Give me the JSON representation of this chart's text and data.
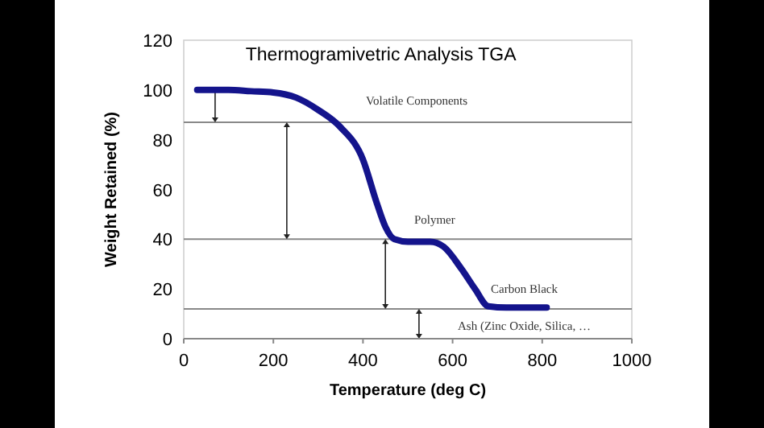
{
  "chart_data": {
    "type": "line",
    "title": "Thermogramivetric Analysis TGA",
    "xlabel": "Temperature (deg C)",
    "ylabel": "Weight Retained (%)",
    "x": [
      30,
      100,
      150,
      200,
      250,
      300,
      350,
      400,
      430,
      450,
      470,
      500,
      550,
      580,
      620,
      650,
      680,
      720,
      810
    ],
    "series": [
      {
        "color": "#14148c",
        "values": [
          100,
          100,
          99.5,
          99,
          97,
          92,
          85,
          72,
          55,
          45,
          40,
          39,
          39,
          37,
          28,
          20,
          13,
          12.5,
          12.5
        ]
      }
    ],
    "xlim": [
      0,
      1000
    ],
    "xticks": [
      0,
      200,
      400,
      600,
      800,
      1000
    ],
    "ylim": [
      0,
      120
    ],
    "yticks": [
      0,
      20,
      40,
      60,
      80,
      100,
      120
    ],
    "ref_lines": [
      {
        "axis": "y",
        "value": 87
      },
      {
        "axis": "y",
        "value": 40
      },
      {
        "axis": "y",
        "value": 12
      }
    ],
    "annotations": [
      "Volatile Components",
      "Polymer",
      "Carbon Black",
      "Ash (Zinc Oxide, Silica, …"
    ],
    "grid": false,
    "marker": "none",
    "line_style": "solid"
  }
}
